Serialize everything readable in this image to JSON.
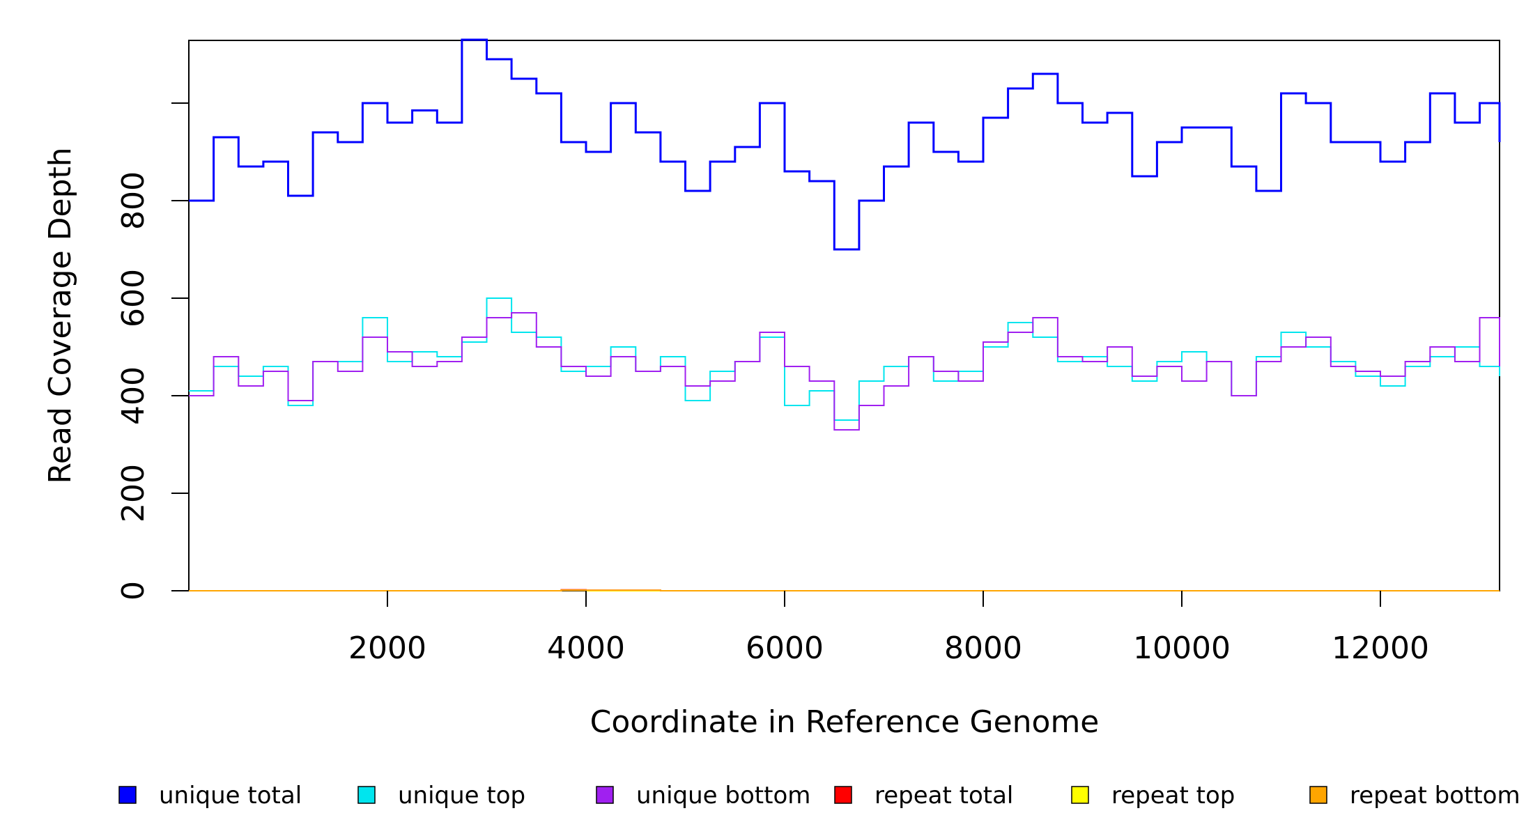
{
  "chart_data": {
    "type": "line",
    "title": "",
    "xlabel": "Coordinate in Reference Genome",
    "ylabel": "Read Coverage Depth",
    "xlim": [
      0,
      13200
    ],
    "ylim": [
      0,
      1130
    ],
    "x_ticks": [
      2000,
      4000,
      6000,
      8000,
      10000,
      12000
    ],
    "x_tick_labels": [
      "2000",
      "4000",
      "6000",
      "8000",
      "10000",
      "12000"
    ],
    "y_ticks": [
      0,
      200,
      400,
      600,
      800,
      1000
    ],
    "y_tick_labels": [
      "0",
      "200",
      "400",
      "600",
      "800",
      ""
    ],
    "grid": false,
    "legend_position": "bottom",
    "x": [
      0,
      250,
      500,
      750,
      1000,
      1250,
      1500,
      1750,
      2000,
      2250,
      2500,
      2750,
      3000,
      3250,
      3500,
      3750,
      4000,
      4250,
      4500,
      4750,
      5000,
      5250,
      5500,
      5750,
      6000,
      6250,
      6500,
      6750,
      7000,
      7250,
      7500,
      7750,
      8000,
      8250,
      8500,
      8750,
      9000,
      9250,
      9500,
      9750,
      10000,
      10250,
      10500,
      10750,
      11000,
      11250,
      11500,
      11750,
      12000,
      12250,
      12500,
      12750,
      13000,
      13200
    ],
    "series": [
      {
        "name": "unique total",
        "color": "#0000ff",
        "values": [
          800,
          930,
          870,
          880,
          810,
          940,
          920,
          1000,
          960,
          985,
          960,
          1130,
          1090,
          1050,
          1020,
          920,
          900,
          1000,
          940,
          880,
          820,
          880,
          910,
          1000,
          860,
          840,
          700,
          800,
          870,
          960,
          900,
          880,
          970,
          1030,
          1060,
          1000,
          960,
          980,
          850,
          920,
          950,
          950,
          870,
          820,
          1020,
          1000,
          920,
          920,
          880,
          920,
          1020,
          960,
          1000,
          920
        ]
      },
      {
        "name": "unique top",
        "color": "#00e5ee",
        "values": [
          410,
          460,
          440,
          460,
          380,
          470,
          470,
          560,
          470,
          490,
          480,
          510,
          600,
          530,
          520,
          450,
          460,
          500,
          450,
          480,
          390,
          450,
          470,
          520,
          380,
          410,
          350,
          430,
          460,
          480,
          430,
          450,
          500,
          550,
          520,
          470,
          480,
          460,
          430,
          470,
          490,
          470,
          400,
          480,
          530,
          500,
          470,
          440,
          420,
          460,
          480,
          500,
          460,
          440
        ]
      },
      {
        "name": "unique bottom",
        "color": "#a020f0",
        "values": [
          400,
          480,
          420,
          450,
          390,
          470,
          450,
          520,
          490,
          460,
          470,
          520,
          560,
          570,
          500,
          460,
          440,
          480,
          450,
          460,
          420,
          430,
          470,
          530,
          460,
          430,
          330,
          380,
          420,
          480,
          450,
          430,
          510,
          530,
          560,
          480,
          470,
          500,
          440,
          460,
          430,
          470,
          400,
          470,
          500,
          520,
          460,
          450,
          440,
          470,
          500,
          470,
          560,
          460
        ]
      },
      {
        "name": "repeat total",
        "color": "#ff0000",
        "values": [
          0,
          0,
          0,
          0,
          0,
          0,
          0,
          0,
          0,
          0,
          0,
          0,
          0,
          0,
          0,
          2,
          1,
          1,
          1,
          0,
          0,
          0,
          0,
          0,
          0,
          0,
          0,
          0,
          0,
          0,
          0,
          0,
          0,
          0,
          0,
          0,
          0,
          0,
          0,
          0,
          0,
          0,
          0,
          0,
          0,
          0,
          0,
          0,
          0,
          0,
          0,
          0,
          0,
          0
        ]
      },
      {
        "name": "repeat top",
        "color": "#ffff00",
        "values": [
          0,
          0,
          0,
          0,
          0,
          0,
          0,
          0,
          0,
          0,
          0,
          0,
          0,
          0,
          0,
          1,
          0,
          0,
          0,
          0,
          0,
          0,
          0,
          0,
          0,
          0,
          0,
          0,
          0,
          0,
          0,
          0,
          0,
          0,
          0,
          0,
          0,
          0,
          0,
          0,
          0,
          0,
          0,
          0,
          0,
          0,
          0,
          0,
          0,
          0,
          0,
          0,
          0,
          0
        ]
      },
      {
        "name": "repeat bottom",
        "color": "#ffa500",
        "values": [
          0,
          0,
          0,
          0,
          0,
          0,
          0,
          0,
          0,
          0,
          0,
          0,
          0,
          0,
          0,
          1,
          1,
          1,
          1,
          0,
          0,
          0,
          0,
          0,
          0,
          0,
          0,
          0,
          0,
          0,
          0,
          0,
          0,
          0,
          0,
          0,
          0,
          0,
          0,
          0,
          0,
          0,
          0,
          0,
          0,
          0,
          0,
          0,
          0,
          0,
          0,
          0,
          0,
          0
        ]
      }
    ]
  }
}
